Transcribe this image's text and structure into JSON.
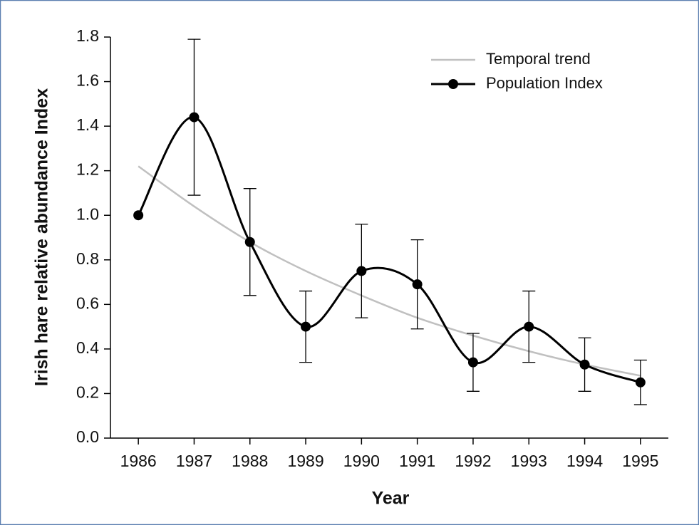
{
  "chart_data": {
    "type": "line",
    "xlabel": "Year",
    "ylabel": "Irish hare relative abundance Index",
    "x": [
      1986,
      1987,
      1988,
      1989,
      1990,
      1991,
      1992,
      1993,
      1994,
      1995
    ],
    "series": [
      {
        "name": "Temporal trend",
        "color": "#c0c0c0",
        "values": [
          1.22,
          1.04,
          0.88,
          0.75,
          0.64,
          0.54,
          0.46,
          0.39,
          0.33,
          0.28
        ]
      },
      {
        "name": "Population Index",
        "color": "#000000",
        "values": [
          1.0,
          1.44,
          0.88,
          0.5,
          0.75,
          0.69,
          0.34,
          0.5,
          0.33,
          0.25
        ],
        "errors": [
          null,
          0.35,
          0.24,
          0.16,
          0.21,
          0.2,
          0.13,
          0.16,
          0.12,
          0.1
        ]
      }
    ],
    "xlim": [
      1985.5,
      1995.5
    ],
    "xticks": [
      1986,
      1987,
      1988,
      1989,
      1990,
      1991,
      1992,
      1993,
      1994,
      1995
    ],
    "ylim": [
      0,
      1.8
    ],
    "yticks": [
      {
        "value": 0,
        "label": "0.0"
      },
      0.2,
      0.4,
      0.6,
      0.8,
      {
        "value": 1,
        "label": "1.0"
      },
      1.2,
      1.4,
      1.6,
      1.8
    ],
    "legend": "upper right"
  }
}
